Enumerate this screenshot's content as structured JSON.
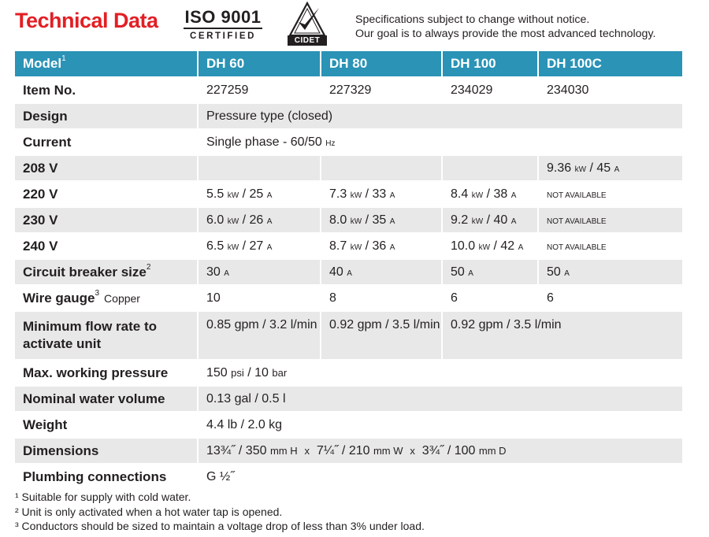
{
  "header": {
    "title": "Technical Data",
    "iso_number": "ISO 9001",
    "iso_certified": "CERTIFIED",
    "cidet_label": "CIDET",
    "notice_line1": "Specifications subject to change without notice.",
    "notice_line2": "Our goal is to always provide the most advanced technology."
  },
  "table": {
    "header": {
      "model": "Model",
      "model_note": "1",
      "dh60": "DH 60",
      "dh80": "DH 80",
      "dh100": "DH 100",
      "dh100c": "DH 100C"
    },
    "item_no": {
      "label": "Item No.",
      "dh60": "227259",
      "dh80": "227329",
      "dh100": "234029",
      "dh100c": "234030"
    },
    "design": {
      "label": "Design",
      "value": "Pressure type (closed)"
    },
    "current": {
      "label": "Current",
      "value": "Single phase - 60/50",
      "unit": "Hz"
    },
    "v208": {
      "label": "208 V",
      "dh100c_num": "9.36",
      "dh100c_kw": "kW",
      "dh100c_sep": " / 45",
      "dh100c_a": "A"
    },
    "v220": {
      "label": "220 V",
      "dh60_num": "5.5",
      "dh60_kw": "kW",
      "dh60_sep": " / 25",
      "dh80_num": "7.3",
      "dh80_sep": " / 33",
      "dh100_num": "8.4",
      "dh100_sep": " / 38",
      "a": "A",
      "kw": "kW",
      "na": "NOT AVAILABLE"
    },
    "v230": {
      "label": "230 V",
      "dh60_num": "6.0",
      "dh60_sep": " / 26",
      "dh80_num": "8.0",
      "dh80_sep": " / 35",
      "dh100_num": "9.2",
      "dh100_sep": " / 40",
      "a": "A",
      "kw": "kW",
      "na": "NOT AVAILABLE"
    },
    "v240": {
      "label": "240 V",
      "dh60_num": "6.5",
      "dh60_sep": " / 27",
      "dh80_num": "8.7",
      "dh80_sep": " / 36",
      "dh100_num": "10.0",
      "dh100_sep": " / 42",
      "a": "A",
      "kw": "kW",
      "na": "NOT AVAILABLE"
    },
    "breaker": {
      "label": "Circuit breaker size",
      "note": "2",
      "dh60": "30",
      "dh80": "40",
      "dh100": "50",
      "dh100c": "50",
      "a": "A"
    },
    "wire": {
      "label": "Wire gauge",
      "note": "3",
      "sub": "Copper",
      "dh60": "10",
      "dh80": "8",
      "dh100": "6",
      "dh100c": "6"
    },
    "flow": {
      "label_line1": "Minimum flow rate to",
      "label_line2": "activate unit",
      "dh60": "0.85 gpm / 3.2 l/min",
      "dh80": "0.92 gpm / 3.5 l/min",
      "dh100": "0.92 gpm / 3.5 l/min"
    },
    "pressure": {
      "label": "Max. working pressure",
      "num1": "150",
      "unit1": "psi",
      "sep": " / 10",
      "unit2": "bar"
    },
    "volume": {
      "label": "Nominal water volume",
      "value": "0.13 gal / 0.5 l"
    },
    "weight": {
      "label": "Weight",
      "value": "4.4 lb / 2.0 kg"
    },
    "dimensions": {
      "label": "Dimensions",
      "p1": "13¾˝ / 350",
      "u1": "mm H",
      "x1": "x",
      "p2": "7¼˝ / 210",
      "u2": "mm W",
      "x2": "x",
      "p3": "3¾˝ / 100",
      "u3": "mm D"
    },
    "plumbing": {
      "label": "Plumbing connections",
      "value": "G ½˝"
    }
  },
  "footnotes": {
    "n1": "¹ Suitable for supply with cold water.",
    "n2": "² Unit is only activated when a hot water tap is opened.",
    "n3": "³ Conductors should be sized to maintain a voltage drop of less than 3% under load."
  },
  "colors": {
    "title_red": "#e31e24",
    "header_blue": "#2a93b6",
    "stripe_gray": "#e8e8e9",
    "text": "#231f20"
  },
  "icons": {
    "cidet_logo": "checkmark-triangle-icon"
  }
}
